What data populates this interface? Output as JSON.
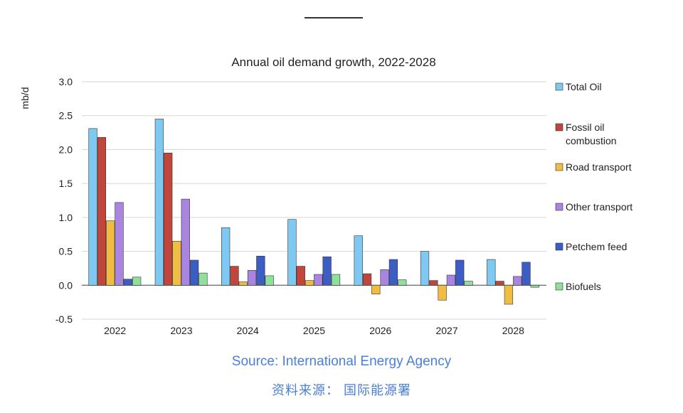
{
  "chart_data": {
    "type": "bar",
    "title": "Annual oil demand growth, 2022-2028",
    "ylabel": "mb/d",
    "ylim": [
      -0.5,
      3.0
    ],
    "yticks": [
      3.0,
      2.5,
      2.0,
      1.5,
      1.0,
      0.5,
      0.0,
      -0.5
    ],
    "ytick_labels": [
      "3.0",
      "2.5",
      "2.0",
      "1.5",
      "1.0",
      "0.5",
      "0.0",
      "-0.5"
    ],
    "grid": true,
    "legend": "right",
    "categories": [
      "2022",
      "2023",
      "2024",
      "2025",
      "2026",
      "2027",
      "2028"
    ],
    "series": [
      {
        "name": "Total Oil",
        "color": "#7ec8f2",
        "values": [
          2.31,
          2.45,
          0.85,
          0.97,
          0.73,
          0.5,
          0.38
        ]
      },
      {
        "name": "Fossil oil combustion",
        "color": "#c0453a",
        "values": [
          2.18,
          1.95,
          0.28,
          0.28,
          0.17,
          0.07,
          0.06
        ]
      },
      {
        "name": "Road transport",
        "color": "#f0bc42",
        "values": [
          0.95,
          0.65,
          0.05,
          0.07,
          -0.13,
          -0.22,
          -0.28
        ]
      },
      {
        "name": "Other transport",
        "color": "#a985e0",
        "values": [
          1.22,
          1.27,
          0.22,
          0.16,
          0.23,
          0.15,
          0.13
        ]
      },
      {
        "name": "Petchem feed",
        "color": "#3b5dc4",
        "values": [
          0.09,
          0.37,
          0.43,
          0.42,
          0.38,
          0.37,
          0.34
        ]
      },
      {
        "name": "Biofuels",
        "color": "#8fe09a",
        "values": [
          0.12,
          0.18,
          0.14,
          0.16,
          0.08,
          0.06,
          -0.03
        ]
      }
    ]
  },
  "source": {
    "en": "Source: International Energy Agency",
    "cn": "资料来源： 国际能源署"
  }
}
